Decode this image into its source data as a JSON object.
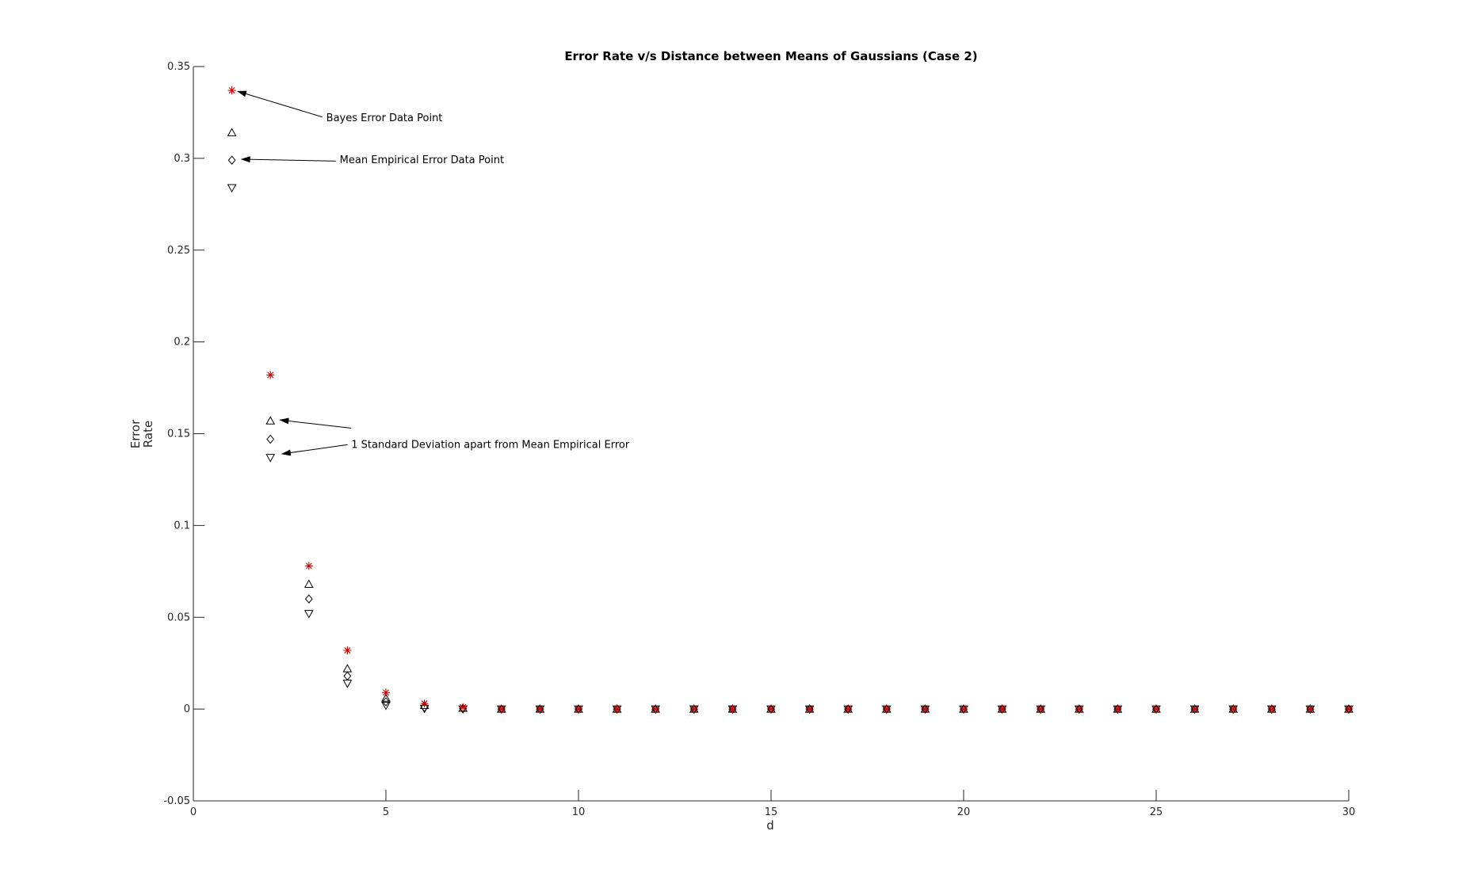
{
  "chart_data": {
    "type": "scatter",
    "title": "Error Rate v/s Distance between Means of Gaussians (Case 2)",
    "xlabel": "d",
    "ylabel": [
      "Error",
      "Rate"
    ],
    "xlim": [
      0,
      30
    ],
    "ylim": [
      -0.05,
      0.35
    ],
    "x_ticks": [
      "0",
      "5",
      "10",
      "15",
      "20",
      "25",
      "30"
    ],
    "y_ticks": [
      "-0.05",
      "0",
      "0.05",
      "0.1",
      "0.15",
      "0.2",
      "0.25",
      "0.3",
      "0.35"
    ],
    "x_tick_values": [
      0,
      5,
      10,
      15,
      20,
      25,
      30
    ],
    "y_tick_values": [
      -0.05,
      0,
      0.05,
      0.1,
      0.15,
      0.2,
      0.25,
      0.3,
      0.35
    ],
    "grid": false,
    "x": [
      1,
      2,
      3,
      4,
      5,
      6,
      7,
      8,
      9,
      10,
      11,
      12,
      13,
      14,
      15,
      16,
      17,
      18,
      19,
      20,
      21,
      22,
      23,
      24,
      25,
      26,
      27,
      28,
      29,
      30
    ],
    "series": [
      {
        "marker": "asterisk",
        "color": "#cc0000",
        "values": [
          0.337,
          0.182,
          0.078,
          0.032,
          0.009,
          0.003,
          0.001,
          0,
          0,
          0,
          0,
          0,
          0,
          0,
          0,
          0,
          0,
          0,
          0,
          0,
          0,
          0,
          0,
          0,
          0,
          0,
          0,
          0,
          0,
          0
        ]
      },
      {
        "marker": "triangle-up",
        "color": "#000000",
        "values": [
          0.314,
          0.157,
          0.068,
          0.022,
          0.006,
          0.002,
          0.0005,
          0,
          0,
          0,
          0,
          0,
          0,
          0,
          0,
          0,
          0,
          0,
          0,
          0,
          0,
          0,
          0,
          0,
          0,
          0,
          0,
          0,
          0,
          0
        ]
      },
      {
        "marker": "diamond",
        "color": "#000000",
        "values": [
          0.299,
          0.147,
          0.06,
          0.018,
          0.004,
          0.001,
          0.0002,
          0,
          0,
          0,
          0,
          0,
          0,
          0,
          0,
          0,
          0,
          0,
          0,
          0,
          0,
          0,
          0,
          0,
          0,
          0,
          0,
          0,
          0,
          0
        ]
      },
      {
        "marker": "triangle-down",
        "color": "#000000",
        "values": [
          0.284,
          0.137,
          0.052,
          0.014,
          0.002,
          0.0003,
          0,
          0,
          0,
          0,
          0,
          0,
          0,
          0,
          0,
          0,
          0,
          0,
          0,
          0,
          0,
          0,
          0,
          0,
          0,
          0,
          0,
          0,
          0,
          0
        ]
      }
    ],
    "annotations": [
      {
        "text": "Bayes Error Data Point",
        "text_at": [
          3.45,
          0.322
        ],
        "arrows": [
          {
            "from": [
              3.35,
              0.3225
            ],
            "to": [
              1.15,
              0.3365
            ]
          }
        ]
      },
      {
        "text": "Mean Empirical Error Data Point",
        "text_at": [
          3.8,
          0.299
        ],
        "arrows": [
          {
            "from": [
              3.7,
              0.2985
            ],
            "to": [
              1.25,
              0.2995
            ]
          }
        ]
      },
      {
        "text": "1 Standard Deviation apart from Mean Empirical Error",
        "text_at": [
          4.1,
          0.144
        ],
        "arrows": [
          {
            "from": [
              4.1,
              0.153
            ],
            "to": [
              2.25,
              0.1575
            ]
          },
          {
            "from": [
              4.0,
              0.144
            ],
            "to": [
              2.3,
              0.139
            ]
          }
        ]
      }
    ]
  }
}
